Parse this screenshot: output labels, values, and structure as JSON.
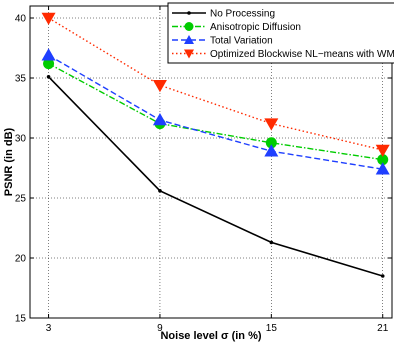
{
  "chart_data": {
    "type": "line",
    "xlabel": "Noise level σ (in %)",
    "ylabel": "PSNR (in dB)",
    "x": [
      3,
      9,
      15,
      21
    ],
    "xticks": [
      "3",
      "9",
      "15",
      "21"
    ],
    "yticks": [
      "15",
      "20",
      "25",
      "30",
      "35",
      "40"
    ],
    "xlim": [
      2,
      21.5
    ],
    "ylim": [
      15,
      41
    ],
    "grid": true,
    "legend_position": "top-right",
    "series": [
      {
        "name": "No Processing",
        "values": [
          35.1,
          25.6,
          21.3,
          18.5
        ],
        "color": "#000000",
        "line": "solid",
        "marker": "dot"
      },
      {
        "name": "Anisotropic Diffusion",
        "values": [
          36.2,
          31.2,
          29.6,
          28.2
        ],
        "color": "#00cc00",
        "line": "dashdot",
        "marker": "circle"
      },
      {
        "name": "Total Variation",
        "values": [
          36.9,
          31.5,
          28.9,
          27.4
        ],
        "color": "#1f3fff",
        "line": "dashed",
        "marker": "triangle-up"
      },
      {
        "name": "Optimized Blockwise NL−means with WM",
        "values": [
          40.0,
          34.4,
          31.2,
          29.0
        ],
        "color": "#ff2a00",
        "line": "dotted",
        "marker": "triangle-down"
      }
    ]
  }
}
